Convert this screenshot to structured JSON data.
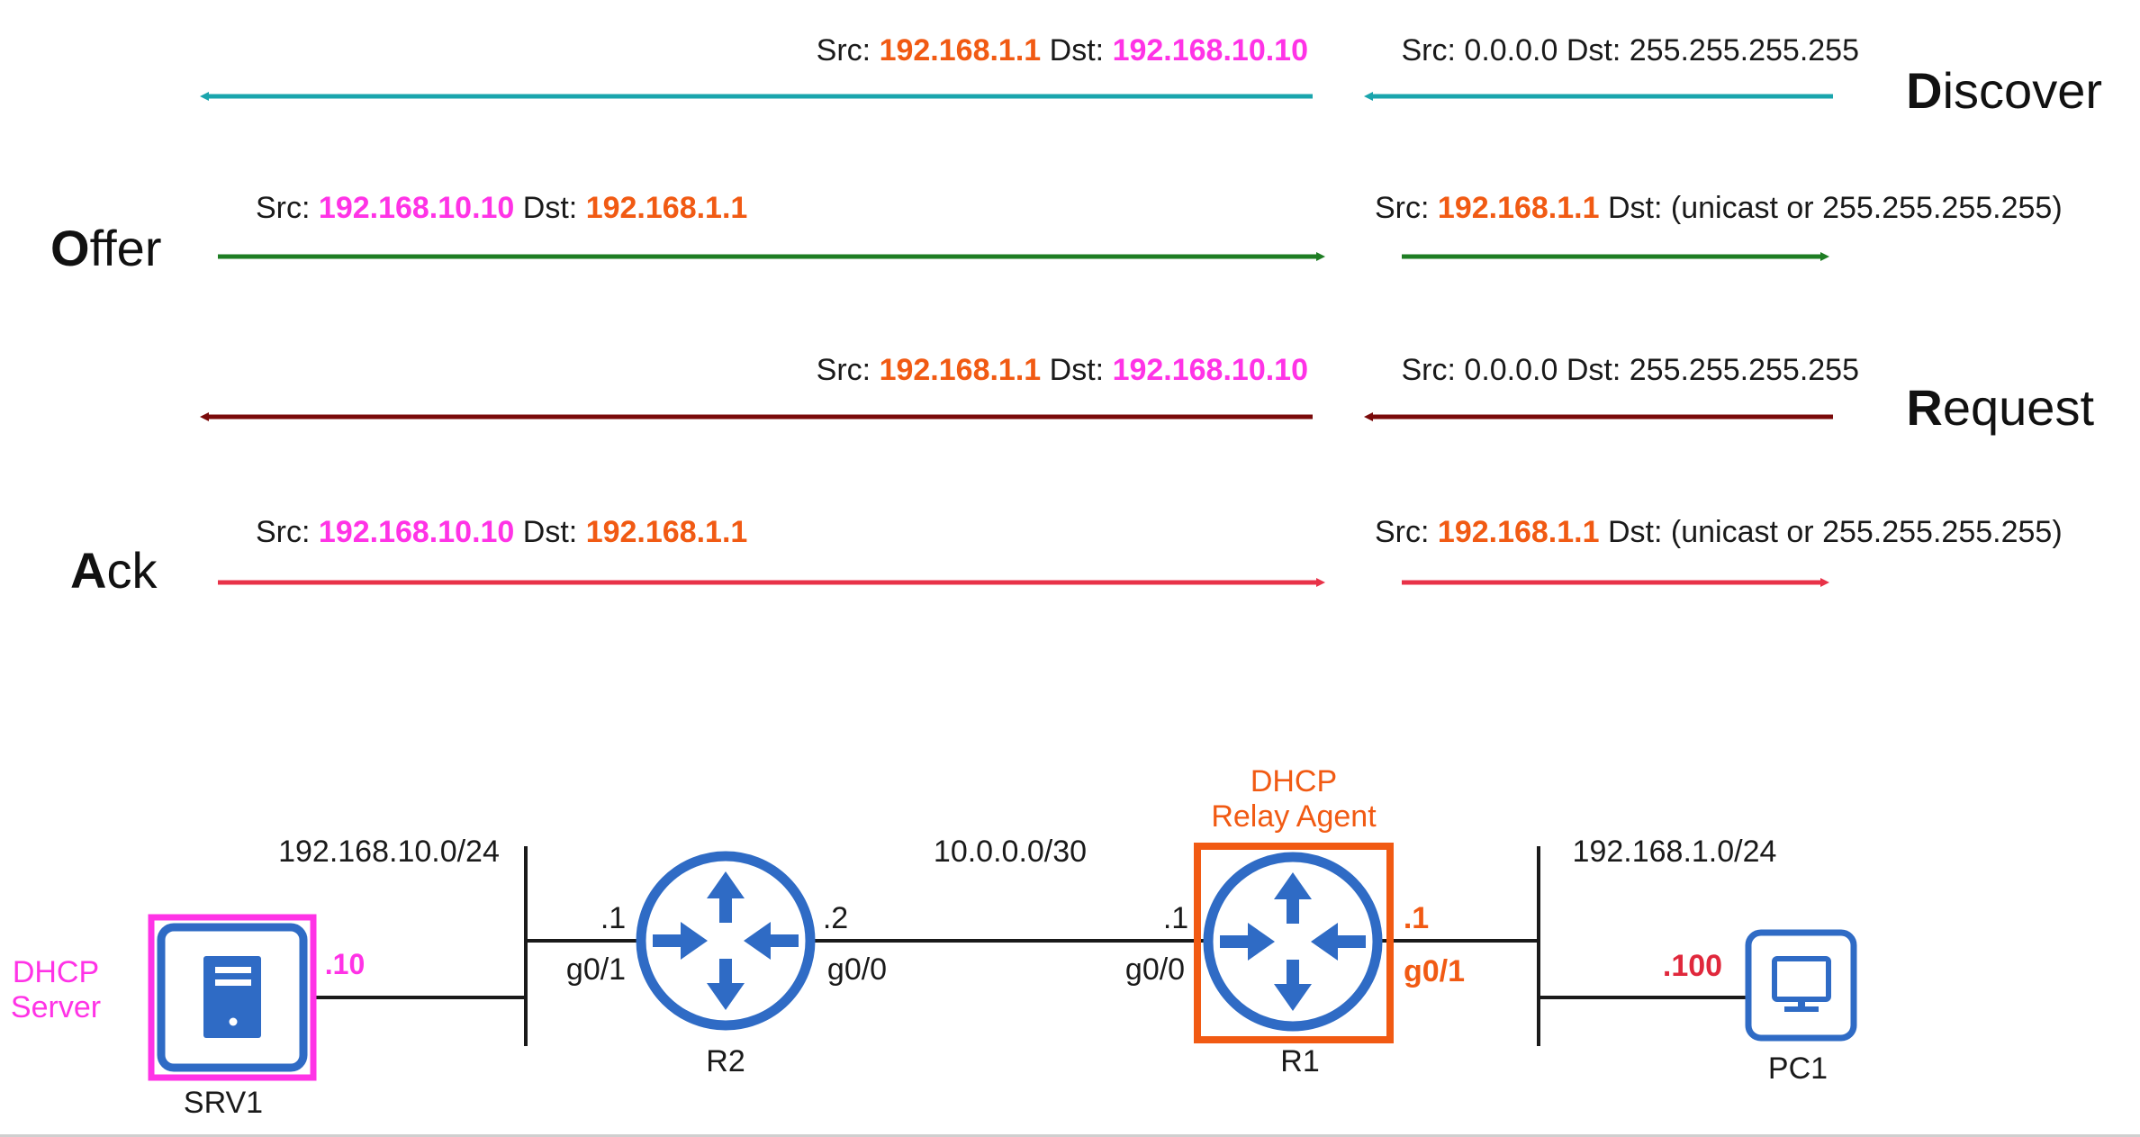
{
  "colors": {
    "discover": "#1aa5ad",
    "offer": "#1e7d23",
    "request": "#7a0a0a",
    "ack": "#e83248",
    "orange": "#f15a13",
    "magenta": "#ff33e6",
    "router_blue": "#2f6bc5",
    "ack_red": "#e0283c",
    "black": "#1a1a1a"
  },
  "messages": {
    "discover": {
      "name_first": "D",
      "name_rest": "iscover",
      "seg1": {
        "src_label": "Src:",
        "src": "192.168.1.1",
        "dst_label": "Dst:",
        "dst": "192.168.10.10"
      },
      "seg2": {
        "src_label": "Src:",
        "src": "0.0.0.0",
        "dst_label": "Dst:",
        "dst": "255.255.255.255"
      }
    },
    "offer": {
      "name_first": "O",
      "name_rest": "ffer",
      "seg1": {
        "src_label": "Src:",
        "src": "192.168.10.10",
        "dst_label": "Dst:",
        "dst": "192.168.1.1"
      },
      "seg2": {
        "src_label": "Src:",
        "src": "192.168.1.1",
        "dst_label": "Dst:",
        "dst": "(unicast or 255.255.255.255)"
      }
    },
    "request": {
      "name_first": "R",
      "name_rest": "equest",
      "seg1": {
        "src_label": "Src:",
        "src": "192.168.1.1",
        "dst_label": "Dst:",
        "dst": "192.168.10.10"
      },
      "seg2": {
        "src_label": "Src:",
        "src": "0.0.0.0",
        "dst_label": "Dst:",
        "dst": "255.255.255.255"
      }
    },
    "ack": {
      "name_first": "A",
      "name_rest": "ck",
      "seg1": {
        "src_label": "Src:",
        "src": "192.168.10.10",
        "dst_label": "Dst:",
        "dst": "192.168.1.1"
      },
      "seg2": {
        "src_label": "Src:",
        "src": "192.168.1.1",
        "dst_label": "Dst:",
        "dst": "(unicast or 255.255.255.255)"
      }
    }
  },
  "topology": {
    "networks": {
      "server_lan": "192.168.10.0/24",
      "link": "10.0.0.0/30",
      "client_lan": "192.168.1.0/24"
    },
    "srv1": {
      "name": "SRV1",
      "role_line1": "DHCP",
      "role_line2": "Server",
      "host_octet": ".10"
    },
    "r2": {
      "name": "R2",
      "left_ip": ".1",
      "left_if": "g0/1",
      "right_ip": ".2",
      "right_if": "g0/0"
    },
    "r1": {
      "name": "R1",
      "role_line1": "DHCP",
      "role_line2": "Relay Agent",
      "left_ip": ".1",
      "left_if": "g0/0",
      "right_ip": ".1",
      "right_if": "g0/1"
    },
    "pc1": {
      "name": "PC1",
      "host_octet": ".100"
    }
  }
}
